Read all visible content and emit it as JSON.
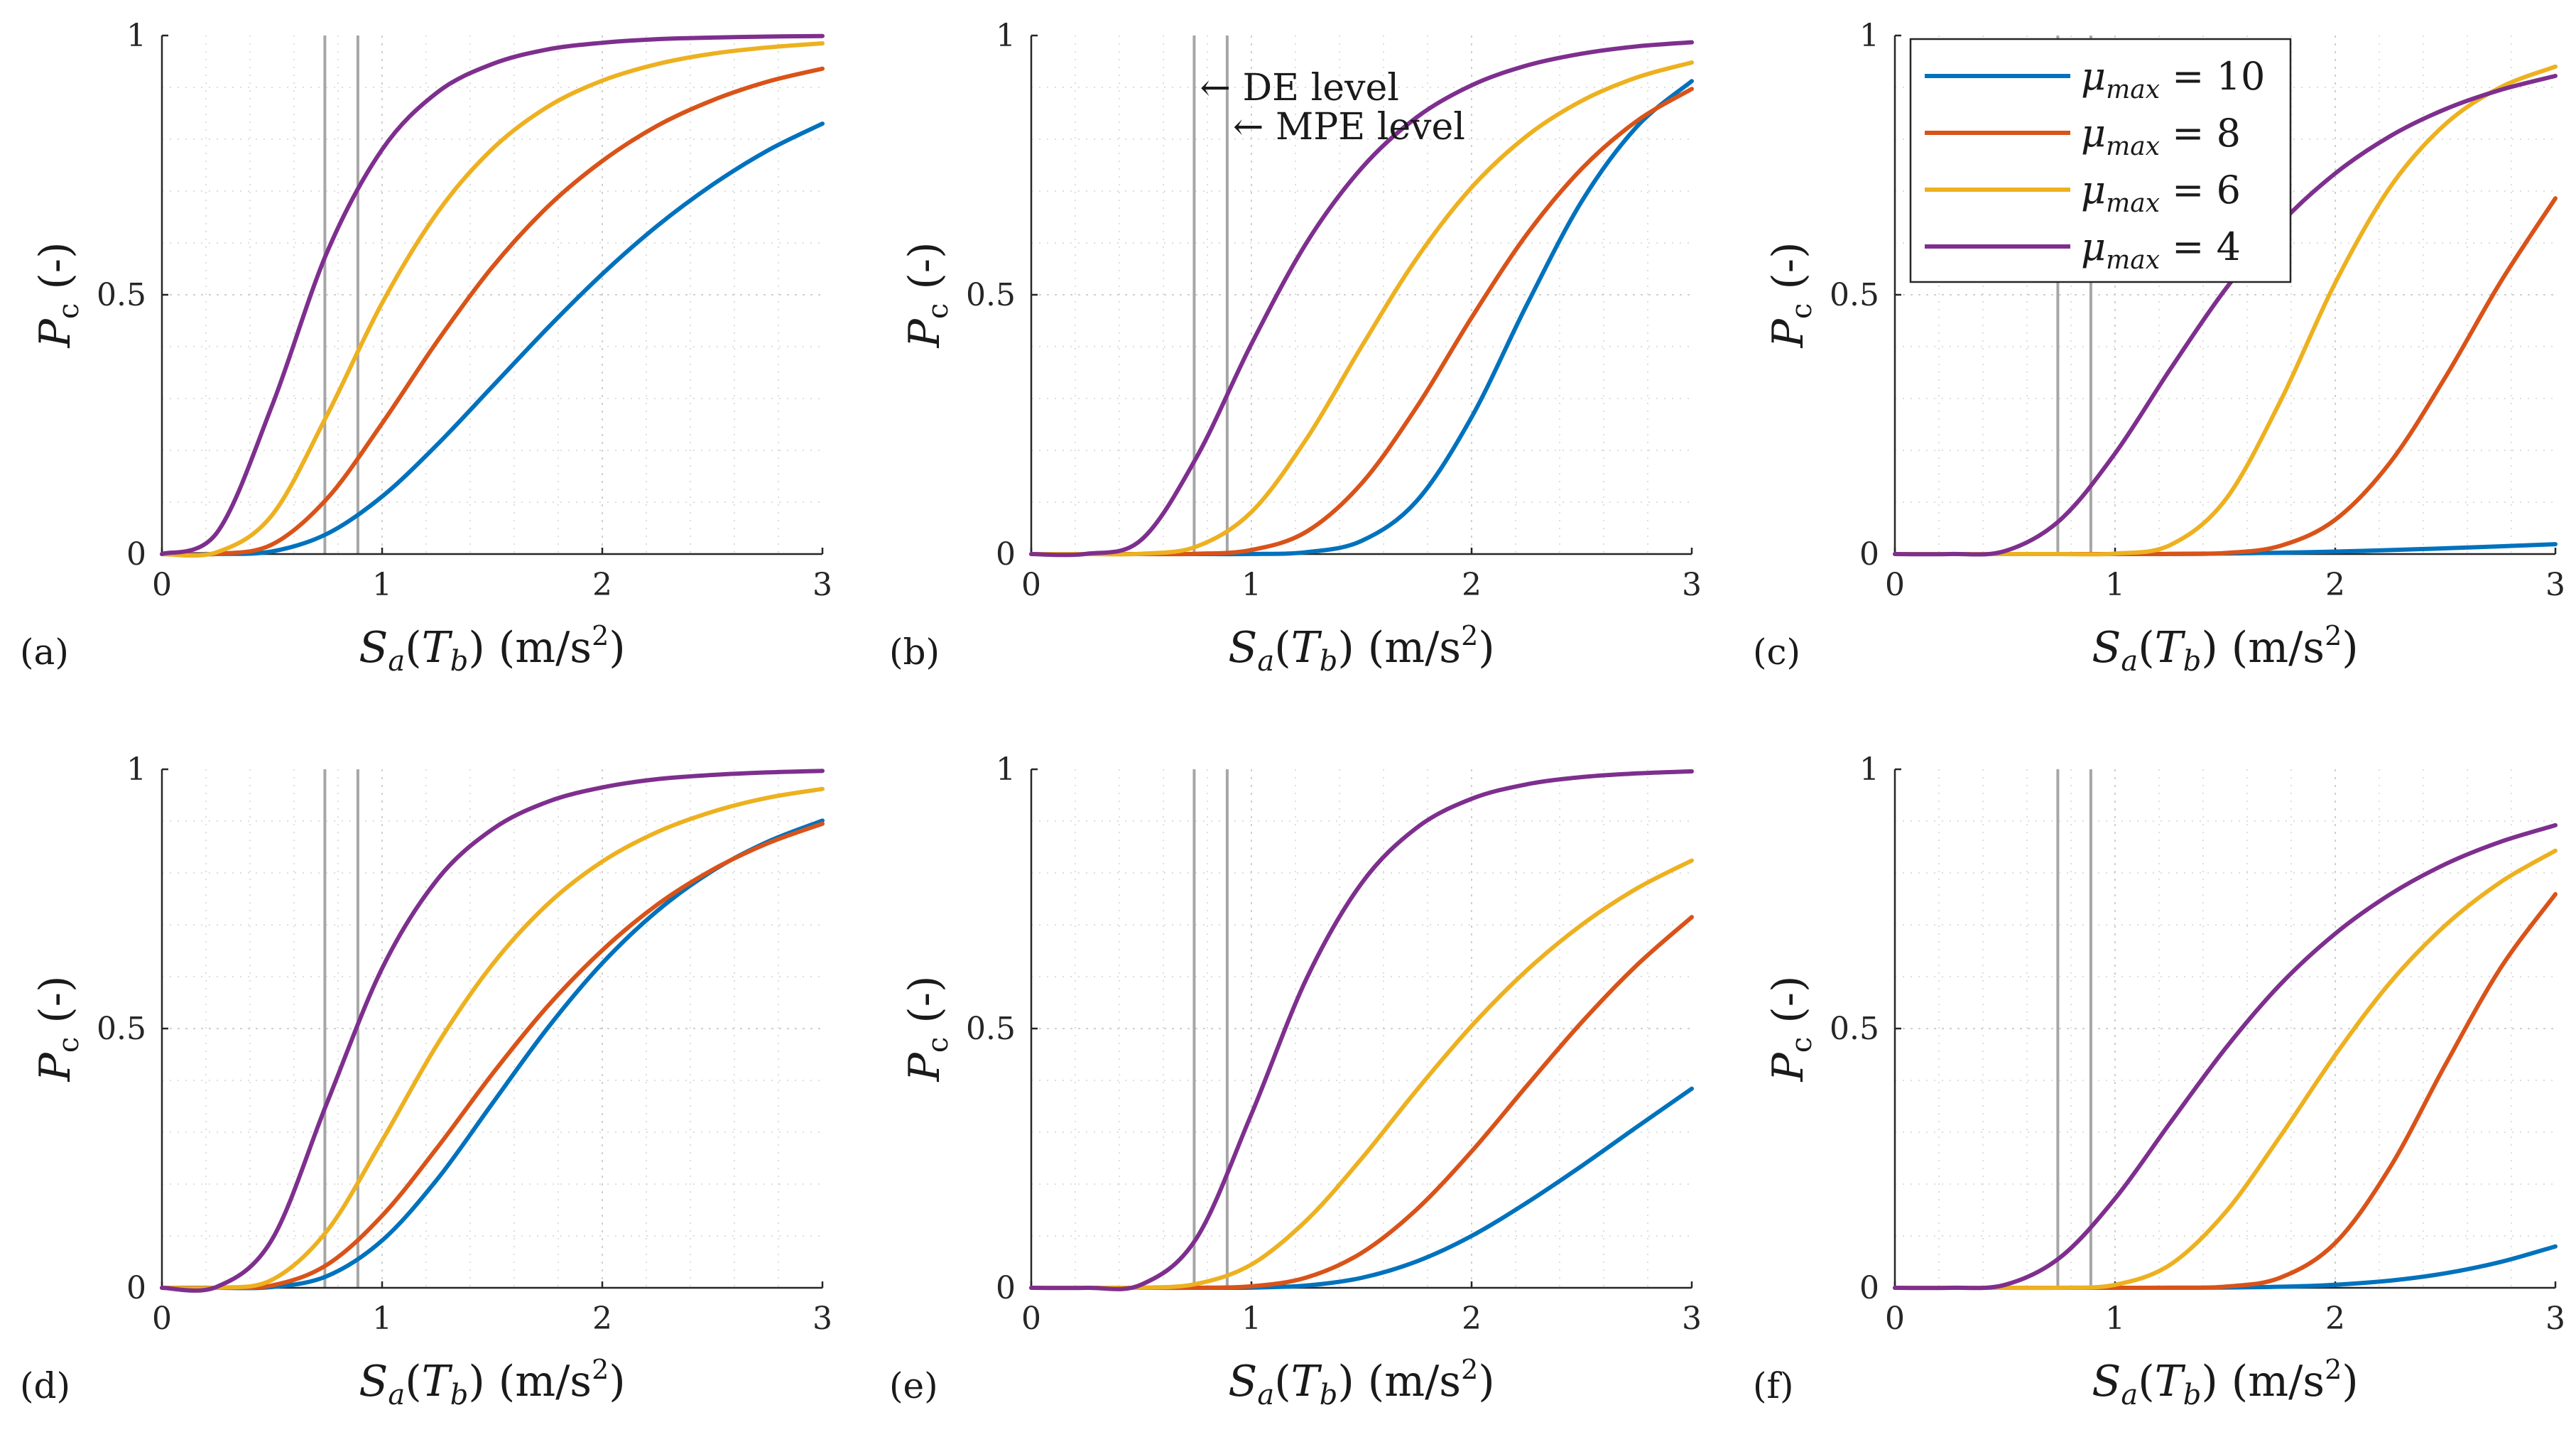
{
  "colors": {
    "mu10": "#0072BD",
    "mu8": "#D95319",
    "mu6": "#EDB120",
    "mu4": "#7E2F8E",
    "reference_lines": "#a6a6a6"
  },
  "series_names": [
    "μmax = 10",
    "μmax = 8",
    "μmax = 6",
    "μmax = 4"
  ],
  "legend": {
    "position": "top-left of panel (c)",
    "entries": [
      {
        "symbol": "μ",
        "sub": "max",
        "rest": " = 10"
      },
      {
        "symbol": "μ",
        "sub": "max",
        "rest": " = 8"
      },
      {
        "symbol": "μ",
        "sub": "max",
        "rest": " = 6"
      },
      {
        "symbol": "μ",
        "sub": "max",
        "rest": " = 4"
      }
    ]
  },
  "axis_text": {
    "ylabel": {
      "main": "P",
      "sub": "c",
      "rest": " (-)"
    },
    "xlabel": {
      "s": "S",
      "a": "a",
      "t": "T",
      "b": "b",
      "unit": " (m/s",
      "sup": "2",
      "close": ")"
    }
  },
  "annotations": [
    {
      "text": "← DE level"
    },
    {
      "text": "← MPE level"
    }
  ],
  "chart_data": [
    {
      "panel": "(a)",
      "type": "line",
      "x": [
        0,
        0.25,
        0.5,
        0.75,
        1,
        1.25,
        1.5,
        1.75,
        2,
        2.25,
        2.5,
        2.75,
        3
      ],
      "series": [
        {
          "name": "μmax = 10",
          "values": [
            0,
            0.0001,
            0.0051,
            0.0391,
            0.111,
            0.211,
            0.323,
            0.435,
            0.54,
            0.633,
            0.712,
            0.778,
            0.83
          ]
        },
        {
          "name": "μmax = 8",
          "values": [
            0,
            0.0004,
            0.0183,
            0.107,
            0.252,
            0.41,
            0.553,
            0.669,
            0.758,
            0.826,
            0.875,
            0.911,
            0.936
          ]
        },
        {
          "name": "μmax = 6",
          "values": [
            0,
            0.0035,
            0.0751,
            0.268,
            0.484,
            0.658,
            0.781,
            0.862,
            0.913,
            0.945,
            0.965,
            0.977,
            0.985
          ]
        },
        {
          "name": "μmax = 4",
          "values": [
            0,
            0.0412,
            0.286,
            0.582,
            0.78,
            0.89,
            0.945,
            0.973,
            0.986,
            0.993,
            0.996,
            0.998,
            0.999
          ]
        }
      ],
      "xlim": [
        0,
        3
      ],
      "ylim": [
        0,
        1
      ],
      "xticks": [
        "0",
        "1",
        "2",
        "3"
      ],
      "yticks": [
        "0",
        "0.5",
        "1"
      ],
      "reference_lines_x": [
        0.74,
        0.89
      ]
    },
    {
      "panel": "(b)",
      "type": "line",
      "x": [
        0,
        0.25,
        0.5,
        0.75,
        1,
        1.25,
        1.5,
        1.75,
        2,
        2.25,
        2.5,
        2.75,
        3
      ],
      "series": [
        {
          "name": "μmax = 10",
          "values": [
            0,
            0,
            0,
            0,
            0.0002,
            0.0037,
            0.0253,
            0.102,
            0.264,
            0.48,
            0.68,
            0.824,
            0.912
          ]
        },
        {
          "name": "μmax = 8",
          "values": [
            0,
            0,
            0,
            0.0005,
            0.0078,
            0.0431,
            0.136,
            0.283,
            0.456,
            0.616,
            0.743,
            0.835,
            0.897
          ]
        },
        {
          "name": "μmax = 6",
          "values": [
            0,
            0,
            0.0006,
            0.0144,
            0.0811,
            0.222,
            0.4,
            0.57,
            0.707,
            0.806,
            0.874,
            0.919,
            0.948
          ]
        },
        {
          "name": "μmax = 4",
          "values": [
            0,
            0.0004,
            0.0275,
            0.186,
            0.405,
            0.6,
            0.744,
            0.842,
            0.904,
            0.942,
            0.965,
            0.979,
            0.987
          ]
        }
      ],
      "xlim": [
        0,
        3
      ],
      "ylim": [
        0,
        1
      ],
      "xticks": [
        "0",
        "1",
        "2",
        "3"
      ],
      "yticks": [
        "0",
        "0.5",
        "1"
      ],
      "reference_lines_x": [
        0.74,
        0.89
      ]
    },
    {
      "panel": "(c)",
      "type": "line",
      "x": [
        0,
        0.25,
        0.5,
        0.75,
        1,
        1.25,
        1.5,
        1.75,
        2,
        2.25,
        2.5,
        2.75,
        3
      ],
      "series": [
        {
          "name": "μmax = 10",
          "values": [
            0,
            0,
            0,
            0,
            0,
            0.0003,
            0.0011,
            0.0026,
            0.0048,
            0.0077,
            0.0111,
            0.0149,
            0.019
          ]
        },
        {
          "name": "μmax = 8",
          "values": [
            0,
            0,
            0,
            0,
            0,
            0.0001,
            0.002,
            0.0158,
            0.0662,
            0.177,
            0.341,
            0.524,
            0.686
          ]
        },
        {
          "name": "μmax = 6",
          "values": [
            0,
            0,
            0,
            0,
            0.0008,
            0.0173,
            0.104,
            0.294,
            0.523,
            0.708,
            0.829,
            0.9,
            0.94
          ]
        },
        {
          "name": "μmax = 4",
          "values": [
            0,
            0,
            0.0058,
            0.0655,
            0.194,
            0.356,
            0.51,
            0.637,
            0.734,
            0.806,
            0.858,
            0.895,
            0.922
          ]
        }
      ],
      "xlim": [
        0,
        3
      ],
      "ylim": [
        0,
        1
      ],
      "xticks": [
        "0",
        "1",
        "2",
        "3"
      ],
      "yticks": [
        "0",
        "0.5",
        "1"
      ],
      "reference_lines_x": [
        0.74,
        0.89
      ]
    },
    {
      "panel": "(d)",
      "type": "line",
      "x": [
        0,
        0.25,
        0.5,
        0.75,
        1,
        1.25,
        1.5,
        1.75,
        2,
        2.25,
        2.5,
        2.75,
        3
      ],
      "series": [
        {
          "name": "μmax = 10",
          "values": [
            0,
            0,
            0.0015,
            0.0226,
            0.0913,
            0.209,
            0.355,
            0.5,
            0.626,
            0.727,
            0.804,
            0.86,
            0.901
          ]
        },
        {
          "name": "μmax = 8",
          "values": [
            0,
            0,
            0.0045,
            0.0445,
            0.139,
            0.27,
            0.412,
            0.542,
            0.651,
            0.739,
            0.806,
            0.857,
            0.895
          ]
        },
        {
          "name": "μmax = 6",
          "values": [
            0,
            0.0001,
            0.0154,
            0.11,
            0.284,
            0.469,
            0.623,
            0.739,
            0.822,
            0.879,
            0.918,
            0.945,
            0.962
          ]
        },
        {
          "name": "μmax = 4",
          "values": [
            0,
            0.002,
            0.0932,
            0.357,
            0.616,
            0.787,
            0.884,
            0.937,
            0.965,
            0.981,
            0.989,
            0.994,
            0.997
          ]
        }
      ],
      "xlim": [
        0,
        3
      ],
      "ylim": [
        0,
        1
      ],
      "xticks": [
        "0",
        "1",
        "2",
        "3"
      ],
      "yticks": [
        "0",
        "0.5",
        "1"
      ],
      "reference_lines_x": [
        0.74,
        0.89
      ]
    },
    {
      "panel": "(e)",
      "type": "line",
      "x": [
        0,
        0.25,
        0.5,
        0.75,
        1,
        1.25,
        1.5,
        1.75,
        2,
        2.25,
        2.5,
        2.75,
        3
      ],
      "series": [
        {
          "name": "μmax = 10",
          "values": [
            0,
            0,
            0,
            0,
            0.0004,
            0.0044,
            0.0192,
            0.0508,
            0.1,
            0.164,
            0.235,
            0.31,
            0.384
          ]
        },
        {
          "name": "μmax = 8",
          "values": [
            0,
            0,
            0,
            0.0001,
            0.0029,
            0.0198,
            0.0673,
            0.151,
            0.263,
            0.389,
            0.512,
            0.622,
            0.715
          ]
        },
        {
          "name": "μmax = 6",
          "values": [
            0,
            0,
            0.0003,
            0.0075,
            0.045,
            0.13,
            0.249,
            0.381,
            0.505,
            0.612,
            0.7,
            0.77,
            0.824
          ]
        },
        {
          "name": "μmax = 4",
          "values": [
            0,
            0,
            0.0061,
            0.0952,
            0.335,
            0.596,
            0.78,
            0.887,
            0.943,
            0.971,
            0.985,
            0.992,
            0.996
          ]
        }
      ],
      "xlim": [
        0,
        3
      ],
      "ylim": [
        0,
        1
      ],
      "xticks": [
        "0",
        "1",
        "2",
        "3"
      ],
      "yticks": [
        "0",
        "0.5",
        "1"
      ],
      "reference_lines_x": [
        0.74,
        0.89
      ]
    },
    {
      "panel": "(f)",
      "type": "line",
      "x": [
        0,
        0.25,
        0.5,
        0.75,
        1,
        1.25,
        1.5,
        1.75,
        2,
        2.25,
        2.5,
        2.75,
        3
      ],
      "series": [
        {
          "name": "μmax = 10",
          "values": [
            0,
            0,
            0,
            0,
            0,
            0.0001,
            0.0005,
            0.002,
            0.0059,
            0.0139,
            0.028,
            0.0497,
            0.0798
          ]
        },
        {
          "name": "μmax = 8",
          "values": [
            0,
            0,
            0,
            0,
            0,
            0.0001,
            0.0023,
            0.0195,
            0.0864,
            0.233,
            0.43,
            0.616,
            0.759
          ]
        },
        {
          "name": "μmax = 6",
          "values": [
            0,
            0,
            0,
            0.0002,
            0.0057,
            0.0445,
            0.145,
            0.292,
            0.449,
            0.589,
            0.699,
            0.782,
            0.843
          ]
        },
        {
          "name": "μmax = 4",
          "values": [
            0,
            0,
            0.0057,
            0.0583,
            0.172,
            0.318,
            0.461,
            0.585,
            0.683,
            0.759,
            0.817,
            0.86,
            0.892
          ]
        }
      ],
      "xlim": [
        0,
        3
      ],
      "ylim": [
        0,
        1
      ],
      "xticks": [
        "0",
        "1",
        "2",
        "3"
      ],
      "yticks": [
        "0",
        "0.5",
        "1"
      ],
      "reference_lines_x": [
        0.74,
        0.89
      ]
    }
  ]
}
